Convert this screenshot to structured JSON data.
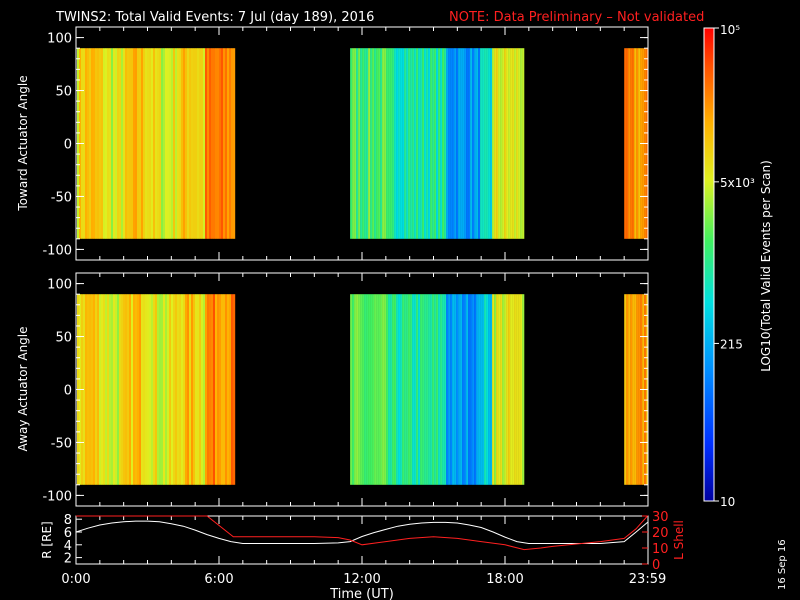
{
  "title": "TWINS2: Total Valid Events:  7 Jul (day 189), 2016",
  "note": "NOTE: Data Preliminary – Not validated",
  "stamp": "16 Sep 16",
  "colors": {
    "note": "#ff2020",
    "r_line": "#ffffff",
    "lshell_line": "#ff2020",
    "background": "#000000"
  },
  "chart_data": [
    {
      "type": "heatmap",
      "ylabel": "Toward Actuator Angle",
      "ylim": [
        -110,
        110
      ],
      "yticks": [
        "100",
        "50",
        "0",
        "-50",
        "-100"
      ],
      "yticks_values": [
        100,
        50,
        0,
        -50,
        -100
      ],
      "angle_range": [
        -90,
        90
      ],
      "xlim_hours": [
        0,
        24
      ],
      "data_segments_hours": [
        [
          -0.05,
          6.6
        ],
        [
          11.5,
          18.8
        ],
        [
          23.0,
          24.0
        ]
      ],
      "colorbar": {
        "label": "LOG10(Total Valid Events per Scan)",
        "ticks": [
          "10",
          "215",
          "5x10^3",
          "10^5"
        ],
        "tick_values": [
          10,
          215,
          5000,
          100000
        ],
        "scale": "log"
      }
    },
    {
      "type": "heatmap",
      "ylabel": "Away Actuator Angle",
      "ylim": [
        -110,
        110
      ],
      "yticks": [
        "100",
        "50",
        "0",
        "-50",
        "-100"
      ],
      "yticks_values": [
        100,
        50,
        0,
        -50,
        -100
      ],
      "angle_range": [
        -90,
        90
      ],
      "xlim_hours": [
        0,
        24
      ],
      "data_segments_hours": [
        [
          -0.05,
          6.6
        ],
        [
          11.5,
          18.8
        ],
        [
          23.0,
          24.0
        ]
      ]
    },
    {
      "type": "line",
      "ylabel_left": "R [RE]",
      "ylabel_right": "L Shell",
      "yticks_left": [
        "8",
        "6",
        "4",
        "2"
      ],
      "yticks_left_values": [
        8,
        6,
        4,
        2
      ],
      "yticks_right": [
        "30",
        "20",
        "10",
        "0"
      ],
      "yticks_right_values": [
        30,
        20,
        10,
        0
      ],
      "ylim_left": [
        1,
        8.5
      ],
      "ylim_right": [
        0,
        30
      ],
      "xlabel": "Time (UT)",
      "xtick_labels": [
        "0:00",
        "6:00",
        "12:00",
        "18:00",
        "23:59"
      ],
      "xtick_hours": [
        0,
        6,
        12,
        18,
        23.98
      ],
      "series": [
        {
          "name": "R [RE]",
          "axis": "left",
          "x": [
            0,
            0.5,
            1,
            1.5,
            2,
            2.5,
            3,
            3.5,
            4,
            4.5,
            5,
            5.5,
            6,
            6.5,
            7,
            8,
            9,
            10,
            11,
            11.5,
            12,
            12.5,
            13,
            13.5,
            14,
            14.5,
            15,
            15.5,
            16,
            16.5,
            17,
            17.5,
            18,
            18.5,
            19,
            20,
            21,
            22,
            23,
            23.5,
            23.98
          ],
          "y": [
            6.0,
            6.6,
            7.1,
            7.4,
            7.6,
            7.7,
            7.7,
            7.6,
            7.3,
            6.9,
            6.3,
            5.6,
            5.0,
            4.5,
            4.2,
            4.2,
            4.2,
            4.2,
            4.3,
            4.5,
            5.3,
            5.9,
            6.4,
            6.9,
            7.2,
            7.4,
            7.5,
            7.5,
            7.4,
            7.1,
            6.7,
            6.0,
            5.2,
            4.5,
            4.2,
            4.2,
            4.2,
            4.2,
            4.5,
            6.0,
            7.5
          ]
        },
        {
          "name": "L Shell",
          "axis": "right",
          "x": [
            0,
            0.5,
            5.5,
            6.6,
            7,
            8,
            9,
            10,
            11,
            11.5,
            12,
            13,
            14,
            15,
            16,
            17,
            18,
            18.8,
            19.5,
            20,
            21,
            22,
            23,
            23.5,
            23.98
          ],
          "y": [
            30,
            32,
            32,
            17,
            17,
            17,
            17,
            17,
            16.5,
            15,
            12,
            14,
            16,
            17,
            16,
            14,
            12,
            9,
            10,
            11,
            12.5,
            14,
            16,
            22,
            30
          ]
        }
      ]
    }
  ]
}
